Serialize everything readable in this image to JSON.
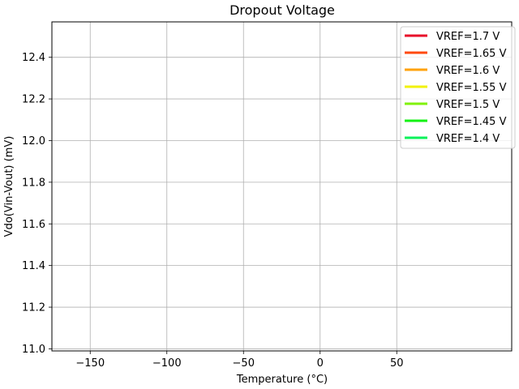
{
  "chart_data": {
    "type": "line",
    "title": "Dropout Voltage",
    "xlabel": "Temperature (°C)",
    "ylabel": "Vdo(Vin-Vout) (mV)",
    "xlim": [
      -175,
      125
    ],
    "ylim": [
      10.99,
      12.57
    ],
    "xticks": [
      -150,
      -100,
      -50,
      0,
      50
    ],
    "xtick_labels": [
      "−150",
      "−100",
      "−50",
      "0",
      "50"
    ],
    "yticks": [
      11.0,
      11.2,
      11.4,
      11.6,
      11.8,
      12.0,
      12.2,
      12.4
    ],
    "ytick_labels": [
      "11.0",
      "11.2",
      "11.4",
      "11.6",
      "11.8",
      "12.0",
      "12.2",
      "12.4"
    ],
    "grid": true,
    "legend_position": "top-right",
    "series": [
      {
        "name": "VREF=1.7 V",
        "color": "#e8102a",
        "x": [],
        "y": []
      },
      {
        "name": "VREF=1.65 V",
        "color": "#ff4a0f",
        "x": [],
        "y": []
      },
      {
        "name": "VREF=1.6 V",
        "color": "#ffa20a",
        "x": [],
        "y": []
      },
      {
        "name": "VREF=1.55 V",
        "color": "#f2f20a",
        "x": [],
        "y": []
      },
      {
        "name": "VREF=1.5 V",
        "color": "#80f20a",
        "x": [],
        "y": []
      },
      {
        "name": "VREF=1.45 V",
        "color": "#14f214",
        "x": [],
        "y": []
      },
      {
        "name": "VREF=1.4 V",
        "color": "#0af25a",
        "x": [],
        "y": []
      }
    ]
  }
}
